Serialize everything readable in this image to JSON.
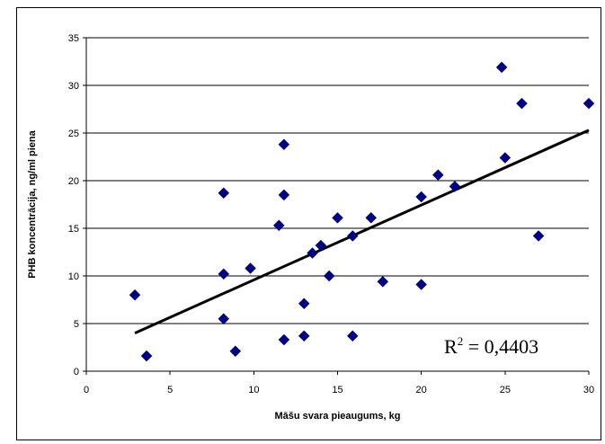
{
  "chart_data": {
    "type": "scatter",
    "xlabel": "Māšu svara pieaugums, kg",
    "ylabel": "PHB koncentrācija, ng/ml piena",
    "xlim": [
      0,
      30
    ],
    "ylim": [
      0,
      35
    ],
    "x_ticks": [
      "0",
      "5",
      "10",
      "15",
      "20",
      "25",
      "30"
    ],
    "y_ticks": [
      "0",
      "5",
      "10",
      "15",
      "20",
      "25",
      "30",
      "35"
    ],
    "grid": "horizontal",
    "marker": "diamond",
    "marker_color": "#000080",
    "points": [
      {
        "x": 2.9,
        "y": 8.0
      },
      {
        "x": 3.6,
        "y": 1.6
      },
      {
        "x": 8.2,
        "y": 18.7
      },
      {
        "x": 8.2,
        "y": 10.2
      },
      {
        "x": 8.2,
        "y": 5.5
      },
      {
        "x": 8.9,
        "y": 2.1
      },
      {
        "x": 9.8,
        "y": 10.8
      },
      {
        "x": 11.5,
        "y": 15.3
      },
      {
        "x": 11.8,
        "y": 23.8
      },
      {
        "x": 11.8,
        "y": 18.5
      },
      {
        "x": 11.8,
        "y": 3.3
      },
      {
        "x": 13.0,
        "y": 7.1
      },
      {
        "x": 13.0,
        "y": 3.7
      },
      {
        "x": 13.5,
        "y": 12.4
      },
      {
        "x": 14.0,
        "y": 13.2
      },
      {
        "x": 14.5,
        "y": 10.0
      },
      {
        "x": 15.0,
        "y": 16.1
      },
      {
        "x": 15.9,
        "y": 14.2
      },
      {
        "x": 15.9,
        "y": 3.7
      },
      {
        "x": 17.0,
        "y": 16.1
      },
      {
        "x": 17.7,
        "y": 9.4
      },
      {
        "x": 20.0,
        "y": 18.3
      },
      {
        "x": 20.0,
        "y": 9.1
      },
      {
        "x": 21.0,
        "y": 20.6
      },
      {
        "x": 22.0,
        "y": 19.4
      },
      {
        "x": 24.8,
        "y": 31.9
      },
      {
        "x": 25.0,
        "y": 22.4
      },
      {
        "x": 26.0,
        "y": 28.1
      },
      {
        "x": 27.0,
        "y": 14.2
      },
      {
        "x": 30.0,
        "y": 28.1
      }
    ],
    "trendline": {
      "type": "linear",
      "color": "#000000",
      "from": {
        "x": 2.9,
        "y": 4.0
      },
      "to": {
        "x": 30.0,
        "y": 25.3
      }
    },
    "annotation": {
      "r2_label": "R",
      "r2_exp": "2",
      "r2_value": " = 0,4403"
    }
  }
}
